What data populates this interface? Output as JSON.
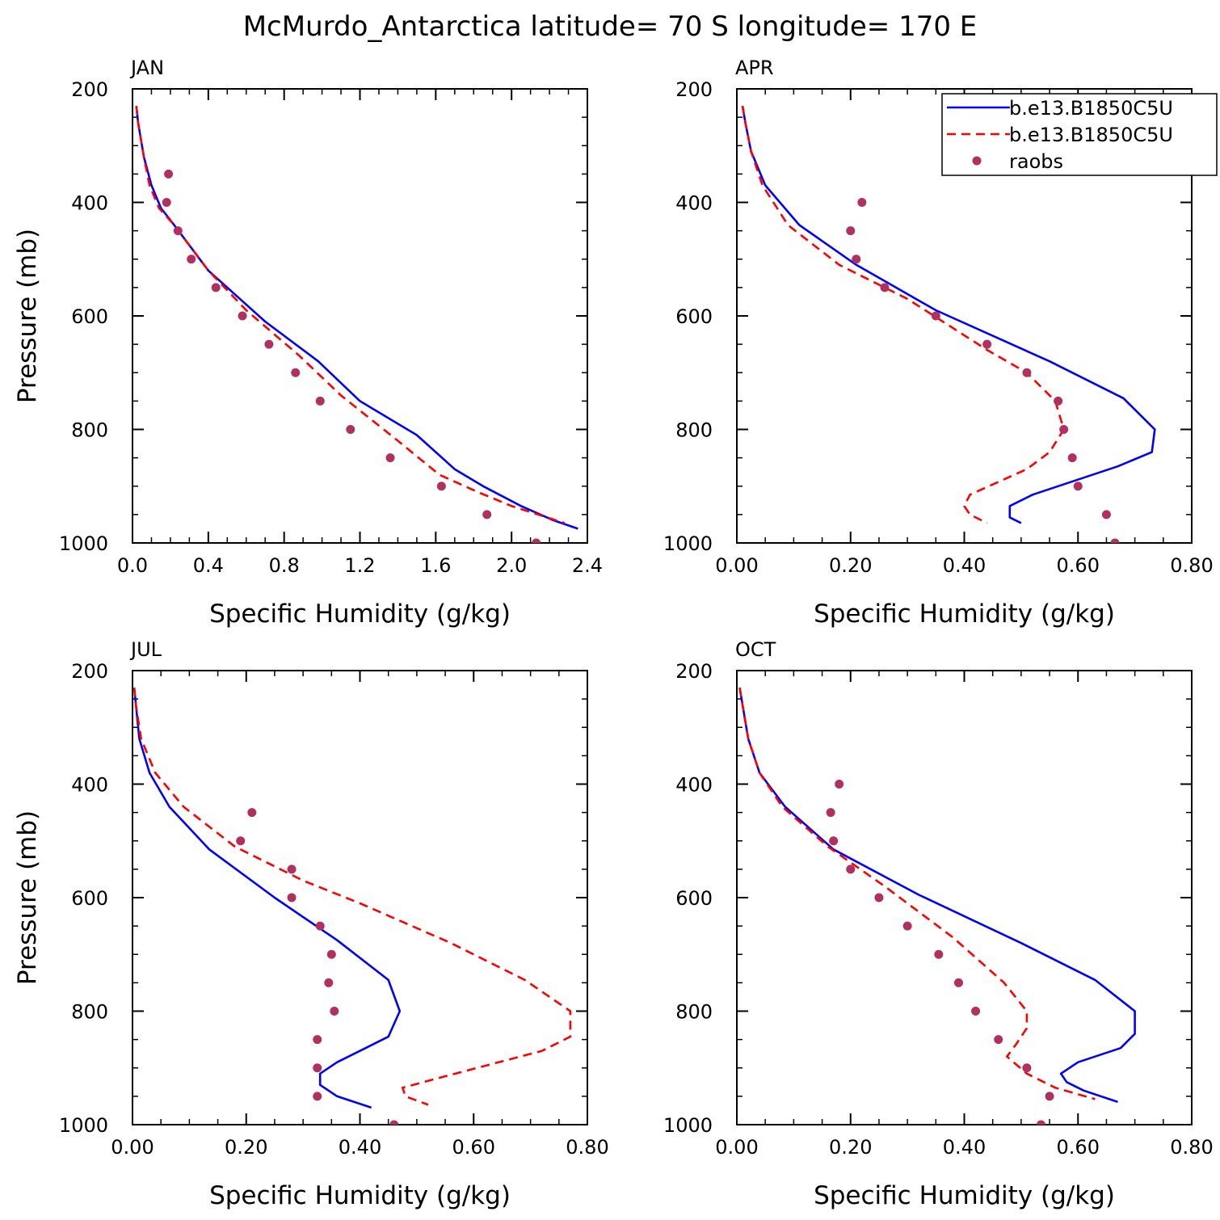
{
  "figure_title": "McMurdo_Antarctica  latitude= 70 S longitude= 170 E",
  "legend": {
    "entries": [
      {
        "label": "b.e13.B1850C5U",
        "style": "solid",
        "color": "#0000ff"
      },
      {
        "label": "b.e13.B1850C5U",
        "style": "dashed",
        "color": "#ff0000"
      },
      {
        "label": "raobs",
        "style": "marker",
        "color": "#b03060"
      }
    ]
  },
  "chart_data": [
    {
      "type": "line",
      "panel": "JAN",
      "title": "JAN",
      "xlabel": "Specific Humidity (g/kg)",
      "ylabel": "Pressure (mb)",
      "xlim": [
        0,
        2.4
      ],
      "ylim": [
        1000,
        200
      ],
      "xticks": [
        0,
        0.4,
        0.8,
        1.2,
        1.6,
        2.0,
        2.4
      ],
      "xtick_labels": [
        "0.0",
        "0.4",
        "0.8",
        "1.2",
        "1.6",
        "2.0",
        "2.4"
      ],
      "yticks": [
        200,
        400,
        600,
        800,
        1000
      ],
      "ytick_labels": [
        "200",
        "400",
        "600",
        "800",
        "1000"
      ],
      "series": [
        {
          "name": "b.e13.B1850C5U",
          "style": "solid",
          "color": "#0000ff",
          "x": [
            0.02,
            0.03,
            0.06,
            0.1,
            0.15,
            0.22,
            0.4,
            0.7,
            0.98,
            1.2,
            1.5,
            1.7,
            1.85,
            2.05,
            2.22,
            2.35
          ],
          "y": [
            230,
            260,
            320,
            370,
            410,
            440,
            520,
            610,
            680,
            750,
            810,
            870,
            900,
            935,
            960,
            975
          ]
        },
        {
          "name": "b.e13.B1850C5U",
          "style": "dashed",
          "color": "#ff0000",
          "x": [
            0.02,
            0.03,
            0.06,
            0.09,
            0.14,
            0.22,
            0.4,
            0.6,
            0.88,
            1.1,
            1.4,
            1.62,
            1.82,
            2.0,
            2.28
          ],
          "y": [
            230,
            260,
            320,
            370,
            410,
            440,
            520,
            590,
            670,
            740,
            820,
            880,
            910,
            935,
            965
          ]
        },
        {
          "name": "raobs",
          "style": "marker",
          "color": "#b03060",
          "x": [
            0.19,
            0.18,
            0.24,
            0.31,
            0.44,
            0.58,
            0.72,
            0.86,
            0.99,
            1.15,
            1.36,
            1.63,
            1.87,
            2.13
          ],
          "y": [
            350,
            400,
            450,
            500,
            550,
            600,
            650,
            700,
            750,
            800,
            850,
            900,
            950,
            1000
          ]
        }
      ]
    },
    {
      "type": "line",
      "panel": "APR",
      "title": "APR",
      "xlabel": "Specific Humidity (g/kg)",
      "ylabel": "",
      "xlim": [
        0,
        0.8
      ],
      "ylim": [
        1000,
        200
      ],
      "xticks": [
        0,
        0.2,
        0.4,
        0.6,
        0.8
      ],
      "xtick_labels": [
        "0.00",
        "0.20",
        "0.40",
        "0.60",
        "0.80"
      ],
      "yticks": [
        200,
        400,
        600,
        800,
        1000
      ],
      "ytick_labels": [
        "200",
        "400",
        "600",
        "800",
        "1000"
      ],
      "series": [
        {
          "name": "b.e13.B1850C5U",
          "style": "solid",
          "color": "#0000ff",
          "x": [
            0.01,
            0.015,
            0.025,
            0.05,
            0.11,
            0.21,
            0.35,
            0.55,
            0.68,
            0.735,
            0.73,
            0.67,
            0.52,
            0.48,
            0.48,
            0.5
          ],
          "y": [
            230,
            260,
            310,
            370,
            440,
            510,
            590,
            680,
            745,
            800,
            840,
            865,
            915,
            935,
            955,
            965
          ]
        },
        {
          "name": "b.e13.B1850C5U",
          "style": "dashed",
          "color": "#ff0000",
          "x": [
            0.01,
            0.015,
            0.025,
            0.045,
            0.09,
            0.18,
            0.3,
            0.44,
            0.51,
            0.56,
            0.575,
            0.55,
            0.51,
            0.41,
            0.4,
            0.41,
            0.44
          ],
          "y": [
            230,
            260,
            310,
            370,
            440,
            510,
            570,
            660,
            700,
            750,
            800,
            840,
            870,
            915,
            935,
            950,
            965
          ]
        },
        {
          "name": "raobs",
          "style": "marker",
          "color": "#b03060",
          "x": [
            0.22,
            0.2,
            0.21,
            0.26,
            0.35,
            0.44,
            0.51,
            0.565,
            0.575,
            0.59,
            0.6,
            0.65,
            0.665
          ],
          "y": [
            400,
            450,
            500,
            550,
            600,
            650,
            700,
            750,
            800,
            850,
            900,
            950,
            1000
          ]
        }
      ]
    },
    {
      "type": "line",
      "panel": "JUL",
      "title": "JUL",
      "xlabel": "Specific Humidity (g/kg)",
      "ylabel": "Pressure (mb)",
      "xlim": [
        0,
        0.8
      ],
      "ylim": [
        1000,
        200
      ],
      "xticks": [
        0,
        0.2,
        0.4,
        0.6,
        0.8
      ],
      "xtick_labels": [
        "0.00",
        "0.20",
        "0.40",
        "0.60",
        "0.80"
      ],
      "yticks": [
        200,
        400,
        600,
        800,
        1000
      ],
      "ytick_labels": [
        "200",
        "400",
        "600",
        "800",
        "1000"
      ],
      "series": [
        {
          "name": "b.e13.B1850C5U",
          "style": "solid",
          "color": "#0000ff",
          "x": [
            0.003,
            0.006,
            0.012,
            0.03,
            0.065,
            0.135,
            0.25,
            0.36,
            0.45,
            0.47,
            0.45,
            0.41,
            0.36,
            0.33,
            0.33,
            0.36,
            0.42
          ],
          "y": [
            230,
            260,
            320,
            380,
            440,
            515,
            600,
            675,
            745,
            800,
            845,
            865,
            890,
            910,
            930,
            950,
            970
          ]
        },
        {
          "name": "b.e13.B1850C5U",
          "style": "dashed",
          "color": "#ff0000",
          "x": [
            0.003,
            0.006,
            0.015,
            0.04,
            0.09,
            0.18,
            0.3,
            0.4,
            0.56,
            0.69,
            0.77,
            0.77,
            0.72,
            0.53,
            0.475,
            0.48,
            0.52
          ],
          "y": [
            230,
            260,
            320,
            380,
            440,
            510,
            570,
            610,
            680,
            745,
            800,
            845,
            870,
            920,
            935,
            950,
            965
          ]
        },
        {
          "name": "raobs",
          "style": "marker",
          "color": "#b03060",
          "x": [
            0.21,
            0.19,
            0.28,
            0.28,
            0.33,
            0.35,
            0.345,
            0.355,
            0.325,
            0.325,
            0.325,
            0.46
          ],
          "y": [
            450,
            500,
            550,
            600,
            650,
            700,
            750,
            800,
            850,
            900,
            950,
            1000
          ]
        }
      ]
    },
    {
      "type": "line",
      "panel": "OCT",
      "title": "OCT",
      "xlabel": "Specific Humidity (g/kg)",
      "ylabel": "",
      "xlim": [
        0,
        0.8
      ],
      "ylim": [
        1000,
        200
      ],
      "xticks": [
        0,
        0.2,
        0.4,
        0.6,
        0.8
      ],
      "xtick_labels": [
        "0.00",
        "0.20",
        "0.40",
        "0.60",
        "0.80"
      ],
      "yticks": [
        200,
        400,
        600,
        800,
        1000
      ],
      "ytick_labels": [
        "200",
        "400",
        "600",
        "800",
        "1000"
      ],
      "series": [
        {
          "name": "b.e13.B1850C5U",
          "style": "solid",
          "color": "#0000ff",
          "x": [
            0.005,
            0.01,
            0.02,
            0.04,
            0.085,
            0.17,
            0.32,
            0.5,
            0.63,
            0.7,
            0.7,
            0.675,
            0.6,
            0.57,
            0.58,
            0.61,
            0.67
          ],
          "y": [
            230,
            260,
            320,
            380,
            440,
            515,
            595,
            680,
            745,
            800,
            840,
            865,
            890,
            910,
            925,
            940,
            960
          ]
        },
        {
          "name": "b.e13.B1850C5U",
          "style": "dashed",
          "color": "#ff0000",
          "x": [
            0.005,
            0.01,
            0.02,
            0.04,
            0.08,
            0.16,
            0.26,
            0.38,
            0.47,
            0.51,
            0.51,
            0.49,
            0.475,
            0.51,
            0.56,
            0.63
          ],
          "y": [
            230,
            260,
            320,
            380,
            440,
            510,
            580,
            670,
            750,
            800,
            830,
            860,
            880,
            910,
            935,
            955
          ]
        },
        {
          "name": "raobs",
          "style": "marker",
          "color": "#b03060",
          "x": [
            0.18,
            0.165,
            0.17,
            0.2,
            0.25,
            0.3,
            0.355,
            0.39,
            0.42,
            0.46,
            0.51,
            0.55,
            0.535
          ],
          "y": [
            400,
            450,
            500,
            550,
            600,
            650,
            700,
            750,
            800,
            850,
            900,
            950,
            1000
          ]
        }
      ]
    }
  ]
}
